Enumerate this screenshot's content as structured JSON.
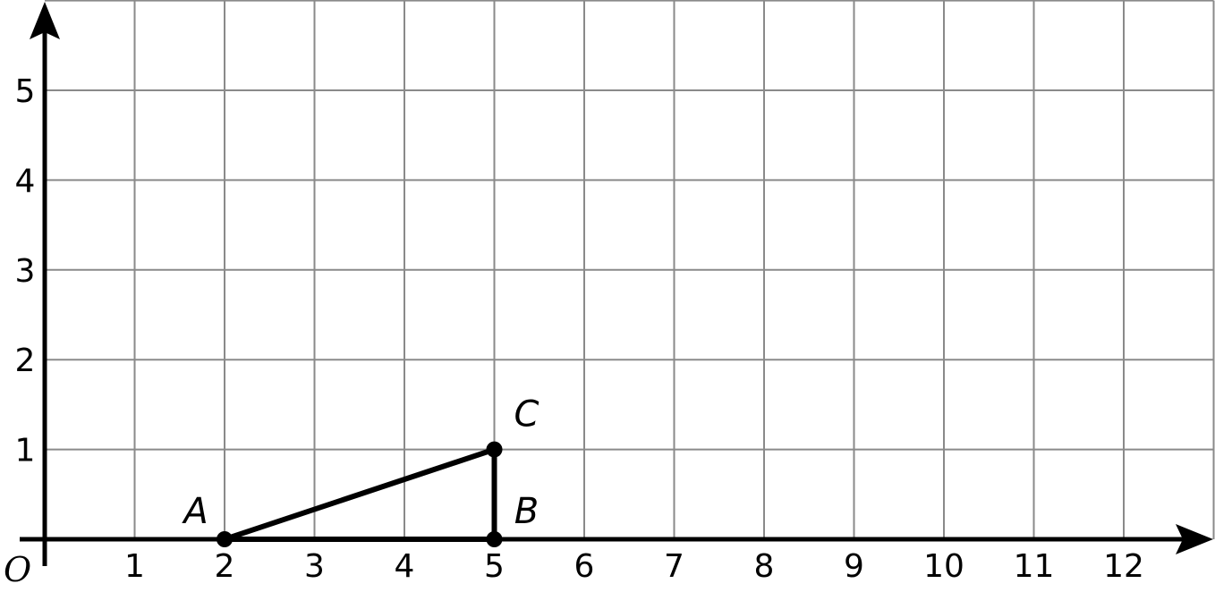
{
  "diagram": {
    "type": "coordinate-grid",
    "origin_label": "O",
    "x_range": [
      0,
      13
    ],
    "y_range": [
      0,
      6
    ],
    "x_ticks": [
      "1",
      "2",
      "3",
      "4",
      "5",
      "6",
      "7",
      "8",
      "9",
      "10",
      "11",
      "12"
    ],
    "y_ticks": [
      "1",
      "2",
      "3",
      "4",
      "5"
    ],
    "grid": true,
    "colors": {
      "grid": "#8a8a8a",
      "axis": "#000000",
      "shape": "#000000"
    },
    "points": [
      {
        "label": "A",
        "x": 2,
        "y": 0
      },
      {
        "label": "B",
        "x": 5,
        "y": 0
      },
      {
        "label": "C",
        "x": 5,
        "y": 1
      }
    ],
    "segments": [
      [
        "A",
        "B"
      ],
      [
        "B",
        "C"
      ],
      [
        "C",
        "A"
      ]
    ]
  }
}
